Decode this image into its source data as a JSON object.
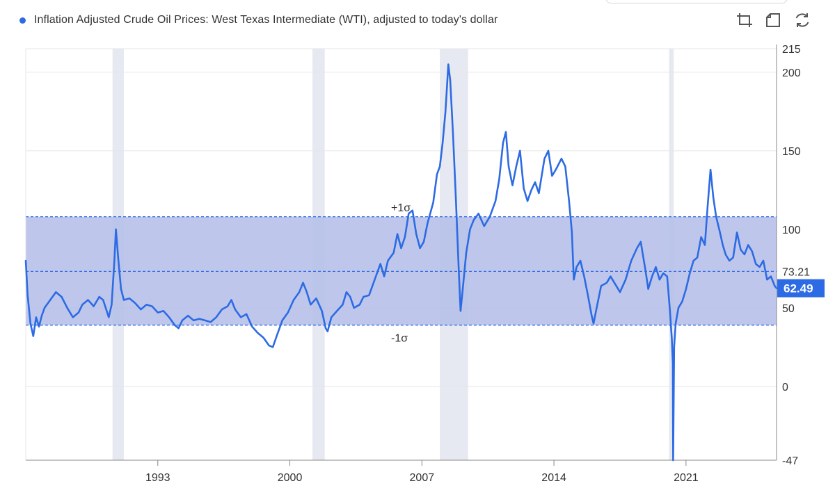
{
  "legend": {
    "label": "Inflation Adjusted Crude Oil Prices: West Texas Intermediate (WTI), adjusted to today's dollar"
  },
  "toolbar": {
    "icons": [
      "zoom-in-icon",
      "zoom-reset-icon",
      "refresh-icon"
    ]
  },
  "colors": {
    "series": "#2d6be4",
    "band": "#b3bde8",
    "recession": "#e6e9f1",
    "grid": "#e6e6e6",
    "badge": "#2d6be4"
  },
  "chart_data": {
    "type": "line",
    "title": "Inflation Adjusted Crude Oil Prices: West Texas Intermediate (WTI), adjusted to today's dollar",
    "xlim": [
      1986.0,
      2025.8
    ],
    "ylim": [
      -47,
      215
    ],
    "y_ticks": [
      -47,
      0,
      50,
      100,
      150,
      200,
      215
    ],
    "x_ticks": [
      1993,
      2000,
      2007,
      2014,
      2021
    ],
    "mean": 73.21,
    "mean_label": "73.21",
    "sigma_upper": 108,
    "sigma_lower": 39,
    "sigma_upper_label": "+1σ",
    "sigma_lower_label": "-1σ",
    "last_value": 62.49,
    "last_value_label": "62.49",
    "recessions": [
      [
        1990.6,
        1991.2
      ],
      [
        2001.2,
        2001.85
      ],
      [
        2007.95,
        2009.45
      ],
      [
        2020.1,
        2020.35
      ]
    ],
    "series": [
      {
        "name": "WTI (inflation adjusted)",
        "points": [
          [
            1986.0,
            80
          ],
          [
            1986.1,
            58
          ],
          [
            1986.25,
            40
          ],
          [
            1986.4,
            32
          ],
          [
            1986.55,
            44
          ],
          [
            1986.7,
            38
          ],
          [
            1986.85,
            45
          ],
          [
            1987.0,
            50
          ],
          [
            1987.3,
            55
          ],
          [
            1987.6,
            60
          ],
          [
            1987.9,
            57
          ],
          [
            1988.2,
            50
          ],
          [
            1988.5,
            44
          ],
          [
            1988.8,
            47
          ],
          [
            1989.0,
            52
          ],
          [
            1989.3,
            55
          ],
          [
            1989.6,
            51
          ],
          [
            1989.9,
            57
          ],
          [
            1990.1,
            55
          ],
          [
            1990.4,
            44
          ],
          [
            1990.55,
            52
          ],
          [
            1990.7,
            80
          ],
          [
            1990.78,
            100
          ],
          [
            1990.9,
            82
          ],
          [
            1991.05,
            62
          ],
          [
            1991.2,
            55
          ],
          [
            1991.5,
            56
          ],
          [
            1991.8,
            53
          ],
          [
            1992.1,
            49
          ],
          [
            1992.4,
            52
          ],
          [
            1992.7,
            51
          ],
          [
            1993.0,
            47
          ],
          [
            1993.3,
            48
          ],
          [
            1993.6,
            44
          ],
          [
            1993.9,
            39
          ],
          [
            1994.1,
            37
          ],
          [
            1994.3,
            42
          ],
          [
            1994.6,
            45
          ],
          [
            1994.9,
            42
          ],
          [
            1995.2,
            43
          ],
          [
            1995.5,
            42
          ],
          [
            1995.8,
            41
          ],
          [
            1996.1,
            44
          ],
          [
            1996.4,
            49
          ],
          [
            1996.7,
            51
          ],
          [
            1996.9,
            55
          ],
          [
            1997.1,
            49
          ],
          [
            1997.4,
            44
          ],
          [
            1997.7,
            46
          ],
          [
            1998.0,
            38
          ],
          [
            1998.3,
            34
          ],
          [
            1998.6,
            31
          ],
          [
            1998.9,
            26
          ],
          [
            1999.1,
            25
          ],
          [
            1999.3,
            32
          ],
          [
            1999.6,
            42
          ],
          [
            1999.9,
            47
          ],
          [
            2000.2,
            55
          ],
          [
            2000.5,
            60
          ],
          [
            2000.7,
            66
          ],
          [
            2000.9,
            60
          ],
          [
            2001.1,
            52
          ],
          [
            2001.4,
            56
          ],
          [
            2001.7,
            48
          ],
          [
            2001.9,
            37
          ],
          [
            2002.0,
            35
          ],
          [
            2002.2,
            44
          ],
          [
            2002.5,
            48
          ],
          [
            2002.8,
            52
          ],
          [
            2003.0,
            60
          ],
          [
            2003.2,
            57
          ],
          [
            2003.4,
            50
          ],
          [
            2003.7,
            52
          ],
          [
            2003.9,
            57
          ],
          [
            2004.2,
            58
          ],
          [
            2004.5,
            68
          ],
          [
            2004.8,
            78
          ],
          [
            2005.0,
            70
          ],
          [
            2005.2,
            80
          ],
          [
            2005.5,
            85
          ],
          [
            2005.7,
            97
          ],
          [
            2005.9,
            88
          ],
          [
            2006.1,
            95
          ],
          [
            2006.3,
            110
          ],
          [
            2006.5,
            112
          ],
          [
            2006.7,
            97
          ],
          [
            2006.9,
            88
          ],
          [
            2007.1,
            92
          ],
          [
            2007.3,
            104
          ],
          [
            2007.6,
            117
          ],
          [
            2007.8,
            135
          ],
          [
            2007.95,
            140
          ],
          [
            2008.1,
            155
          ],
          [
            2008.25,
            175
          ],
          [
            2008.4,
            205
          ],
          [
            2008.5,
            195
          ],
          [
            2008.65,
            160
          ],
          [
            2008.8,
            120
          ],
          [
            2008.95,
            75
          ],
          [
            2009.05,
            48
          ],
          [
            2009.15,
            60
          ],
          [
            2009.35,
            85
          ],
          [
            2009.55,
            100
          ],
          [
            2009.75,
            106
          ],
          [
            2010.0,
            110
          ],
          [
            2010.3,
            102
          ],
          [
            2010.6,
            108
          ],
          [
            2010.9,
            118
          ],
          [
            2011.1,
            132
          ],
          [
            2011.3,
            155
          ],
          [
            2011.45,
            162
          ],
          [
            2011.6,
            140
          ],
          [
            2011.8,
            128
          ],
          [
            2012.0,
            140
          ],
          [
            2012.2,
            150
          ],
          [
            2012.4,
            126
          ],
          [
            2012.6,
            118
          ],
          [
            2012.8,
            125
          ],
          [
            2013.0,
            130
          ],
          [
            2013.2,
            123
          ],
          [
            2013.5,
            145
          ],
          [
            2013.7,
            150
          ],
          [
            2013.9,
            134
          ],
          [
            2014.1,
            138
          ],
          [
            2014.4,
            145
          ],
          [
            2014.6,
            140
          ],
          [
            2014.8,
            118
          ],
          [
            2014.95,
            98
          ],
          [
            2015.05,
            68
          ],
          [
            2015.2,
            76
          ],
          [
            2015.4,
            80
          ],
          [
            2015.6,
            70
          ],
          [
            2015.8,
            58
          ],
          [
            2016.0,
            45
          ],
          [
            2016.1,
            40
          ],
          [
            2016.3,
            52
          ],
          [
            2016.5,
            64
          ],
          [
            2016.8,
            66
          ],
          [
            2017.0,
            70
          ],
          [
            2017.3,
            64
          ],
          [
            2017.5,
            60
          ],
          [
            2017.8,
            68
          ],
          [
            2018.1,
            80
          ],
          [
            2018.4,
            88
          ],
          [
            2018.6,
            92
          ],
          [
            2018.85,
            74
          ],
          [
            2019.0,
            62
          ],
          [
            2019.2,
            70
          ],
          [
            2019.4,
            76
          ],
          [
            2019.6,
            68
          ],
          [
            2019.8,
            72
          ],
          [
            2020.0,
            70
          ],
          [
            2020.15,
            48
          ],
          [
            2020.25,
            30
          ],
          [
            2020.3,
            15
          ],
          [
            2020.32,
            -47
          ],
          [
            2020.37,
            25
          ],
          [
            2020.45,
            40
          ],
          [
            2020.6,
            50
          ],
          [
            2020.8,
            54
          ],
          [
            2021.0,
            62
          ],
          [
            2021.2,
            72
          ],
          [
            2021.4,
            80
          ],
          [
            2021.6,
            82
          ],
          [
            2021.8,
            95
          ],
          [
            2022.0,
            90
          ],
          [
            2022.15,
            115
          ],
          [
            2022.3,
            138
          ],
          [
            2022.45,
            120
          ],
          [
            2022.6,
            108
          ],
          [
            2022.8,
            98
          ],
          [
            2022.95,
            90
          ],
          [
            2023.1,
            84
          ],
          [
            2023.3,
            80
          ],
          [
            2023.5,
            82
          ],
          [
            2023.7,
            98
          ],
          [
            2023.9,
            87
          ],
          [
            2024.1,
            84
          ],
          [
            2024.3,
            90
          ],
          [
            2024.5,
            86
          ],
          [
            2024.7,
            78
          ],
          [
            2024.9,
            76
          ],
          [
            2025.1,
            80
          ],
          [
            2025.3,
            68
          ],
          [
            2025.5,
            70
          ],
          [
            2025.7,
            64
          ],
          [
            2025.8,
            62.49
          ]
        ]
      }
    ]
  }
}
